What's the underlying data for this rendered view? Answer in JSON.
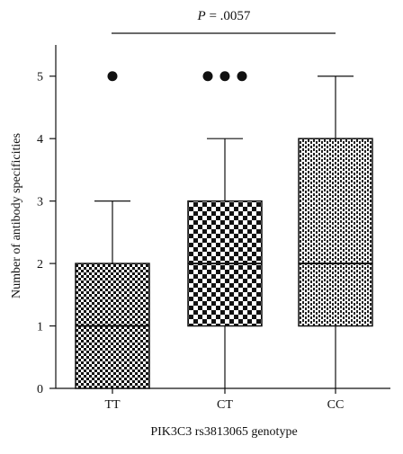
{
  "chart_data": {
    "type": "box",
    "categories": [
      "TT",
      "CT",
      "CC"
    ],
    "xlabel": "PIK3C3 rs3813065 genotype",
    "ylabel": "Number of antibody specificities",
    "ylim": [
      0,
      5.5
    ],
    "yticks": [
      0,
      1,
      2,
      3,
      4,
      5
    ],
    "grid": false,
    "annotation": {
      "text_italic": "P",
      "text_rest": " = .0057",
      "spans": [
        "TT",
        "CC"
      ]
    },
    "boxes": [
      {
        "category": "TT",
        "whisker_low": 0,
        "q1": 0,
        "median": 1,
        "q3": 2,
        "whisker_high": 3,
        "outliers": [
          5
        ],
        "pattern": "small-checker"
      },
      {
        "category": "CT",
        "whisker_low": 0,
        "q1": 1,
        "median": 2,
        "q3": 3,
        "whisker_high": 4,
        "outliers": [
          5,
          5,
          5
        ],
        "pattern": "large-checker"
      },
      {
        "category": "CC",
        "whisker_low": 0,
        "q1": 1,
        "median": 2,
        "q3": 4,
        "whisker_high": 5,
        "outliers": [],
        "pattern": "dashed-hatch"
      }
    ]
  }
}
